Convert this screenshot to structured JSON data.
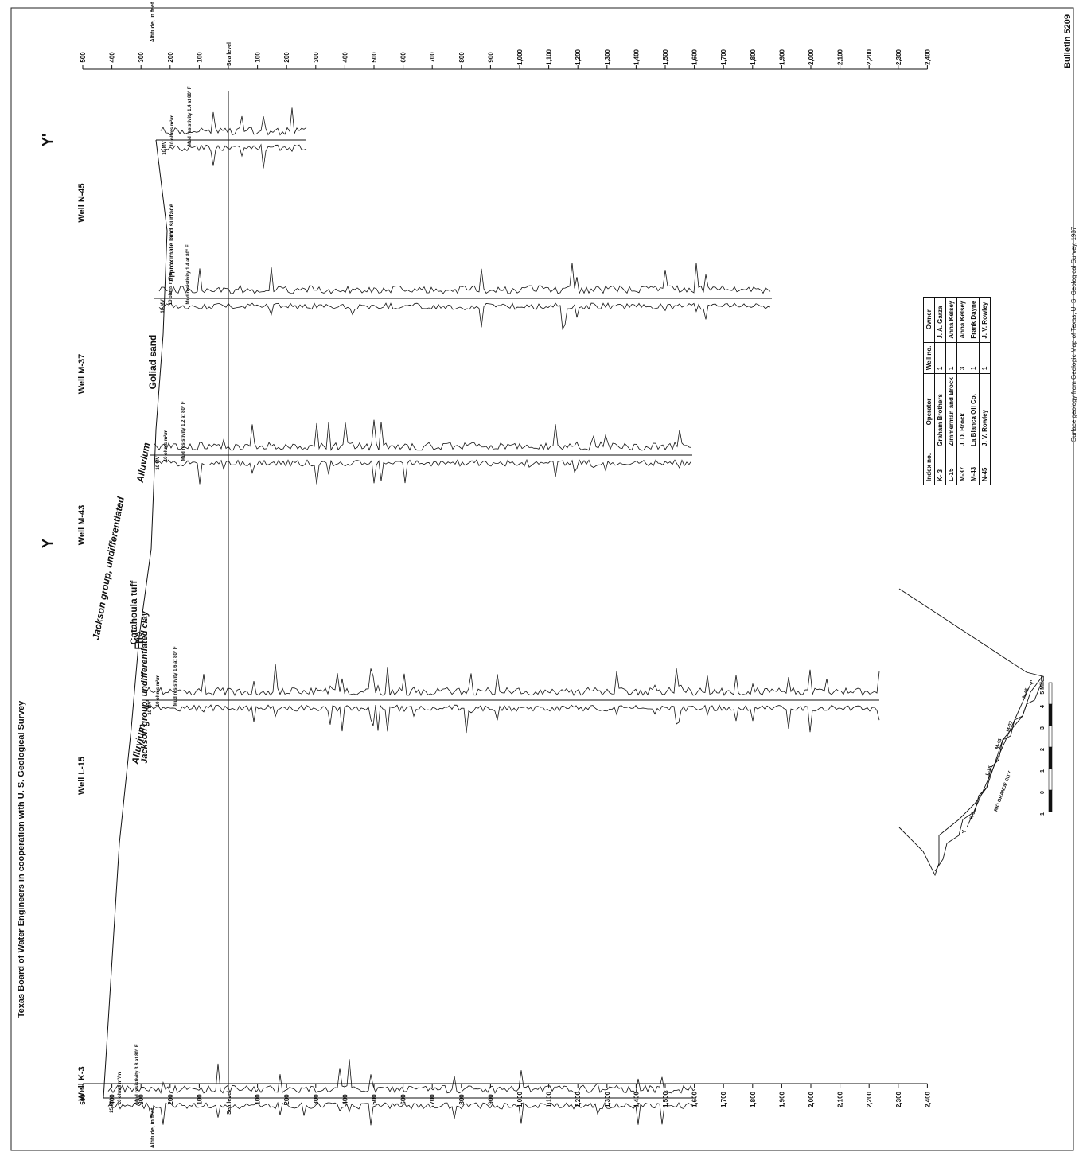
{
  "header": {
    "bulletin": "Bulletin 5209",
    "agency": "Texas Board of Water Engineers in cooperation with U. S. Geological Survey"
  },
  "section_ends": {
    "start": "Y",
    "end": "Y'"
  },
  "axis": {
    "title": "Altitude, in feet",
    "sea_level": "Sea level",
    "ticks_above": [
      "500",
      "400",
      "300",
      "200",
      "100"
    ],
    "ticks_below": [
      "100",
      "200",
      "300",
      "400",
      "500",
      "600",
      "700",
      "800",
      "900",
      "1,000",
      "1,100",
      "1,200",
      "1,300",
      "1,400",
      "1,500",
      "1,600",
      "1,700",
      "1,800",
      "1,900",
      "2,000",
      "2,100",
      "2,200",
      "2,300",
      "2,400"
    ]
  },
  "wells": [
    {
      "label": "Well K-3",
      "scale_sp": "25 MV",
      "scale_res": "20 ohms m²/m",
      "mud": "Mud resistivity 3.8 at 80° F"
    },
    {
      "label": "Well L-15",
      "scale_sp": "10 MV",
      "scale_res": "10 ohms m²/m",
      "mud": "Mud resistivity 1.6 at 80° F"
    },
    {
      "label": "Well M-43",
      "scale_sp": "10 MV",
      "scale_res": "10 ohms m²/m",
      "mud": "Mud resistivity 1.2 at 80° F"
    },
    {
      "label": "Well M-37",
      "scale_sp": "10 MV",
      "scale_res": "10 ohms m²/m",
      "mud": "Mud resistivity 1.4 at 80° F"
    },
    {
      "label": "Well N-45",
      "scale_sp": "10 MV",
      "scale_res": "10 ohms m²/m",
      "mud": "Mud resistivity 1.4 at 80° F"
    }
  ],
  "formations": {
    "jackson": "Jackson group, undifferentiated",
    "alluvium_1": "Alluvium",
    "alluvium_2": "Alluvium",
    "jackson_frio": "Jackson group, undifferentiated clay",
    "frio": "Frio",
    "catahoula": "Catahoula tuff",
    "goliad": "Goliad sand",
    "land_surface": "Approximate land surface"
  },
  "legend": {
    "headers": [
      "Index no.",
      "Operator",
      "Well no.",
      "Owner"
    ],
    "rows": [
      [
        "K- 3",
        "Graham Brothers",
        "1",
        "J. A. Garza"
      ],
      [
        "L-15",
        "Zimmerman and Brock",
        "1",
        "Anna Kelsey"
      ],
      [
        "M-37",
        "J. D. Brock",
        "3",
        "Anna Kelsey"
      ],
      [
        "M-43",
        "La Blanca Oil Co.",
        "1",
        "Frank Dayne"
      ],
      [
        "N-45",
        "J. V. Rowley",
        "1",
        "J. V. Rowley"
      ]
    ]
  },
  "scale_bar": {
    "labels": [
      "1",
      "0",
      "1",
      "2",
      "3",
      "4",
      "5 Miles"
    ]
  },
  "inset_map": {
    "city": "RIO GRANDE CITY",
    "end_y": "Y",
    "end_yp": "Y'",
    "well_labels": [
      "K-3",
      "L-15",
      "M-43",
      "M-37",
      "N-45"
    ]
  },
  "source_note": "Surface geology from Geologic Map of Texas, U. S. Geological Survey, 1937"
}
